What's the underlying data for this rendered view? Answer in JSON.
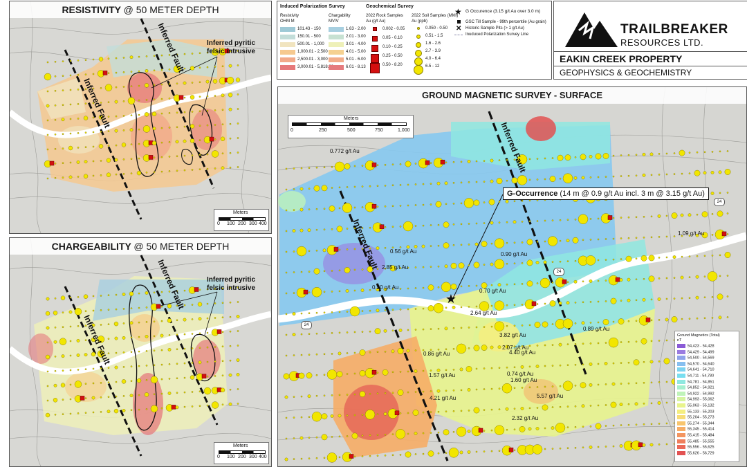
{
  "resistivity_panel": {
    "title_bold": "RESISTIVITY",
    "title_rest": "@ 50 METER DEPTH",
    "callout": "Inferred pyritic\nfelsic intrusive",
    "fault_label": "Inferred Fault",
    "scale_title": "Meters",
    "scale_ticks": [
      "0",
      "100",
      "200",
      "300",
      "400"
    ]
  },
  "chargeability_panel": {
    "title_bold": "CHARGEABILITY",
    "title_rest": "@ 50 METER DEPTH",
    "callout": "Inferred pyritic\nfelsic intrusive",
    "fault_label": "Inferred Fault",
    "scale_title": "Meters",
    "scale_ticks": [
      "0",
      "100",
      "200",
      "300",
      "400"
    ]
  },
  "magnetic_panel": {
    "title": "GROUND MAGNETIC SURVEY - SURFACE",
    "fault_label": "Inferred Fault",
    "scale_title": "Meters",
    "scale_ticks": [
      "0",
      "250",
      "500",
      "750",
      "1,000"
    ],
    "occurrence_bold": "G-Occurrence",
    "occurrence_rest": " (14 m @ 0.9 g/t Au incl. 3 m @ 3.15 g/t Au)",
    "highway_label": "24",
    "gold_labels": [
      "0.772 g/t Au",
      "1.09 g/t Au",
      "0.56 g/t Au",
      "0.90 g/t Au",
      "2.85 g/t Au",
      "0.70 g/t Au",
      "0.20 g/t Au",
      "2.64 g/t Au",
      "0.89 g/t Au",
      "2.07 g/t Au",
      "3.82 g/t Au",
      "0.86 g/t Au",
      "4.40 g/t Au",
      "1.57 g/t Au",
      "0.74 g/t Au",
      "1.60 g/t Au",
      "5.57 g/t Au",
      "4.21 g/t Au",
      "2.32 g/t Au"
    ]
  },
  "legend": {
    "ip_title": "Induced Polarization Survey",
    "res_head": "Resistivity",
    "res_unit": "OHM M",
    "res_classes": [
      "101.43 - 150",
      "150.01 - 500",
      "500.01 - 1,000",
      "1,000.01 - 2,500",
      "2,500.01 - 3,000",
      "3,000.01 - 5,818.08"
    ],
    "res_colors": [
      "#9ec9d6",
      "#c3ddd9",
      "#f1e4bf",
      "#f6c98f",
      "#f2a989",
      "#e6787a"
    ],
    "chg_head": "Chargability",
    "chg_unit": "MV/V",
    "chg_classes": [
      "1.63 - 2.00",
      "2.01 - 3.00",
      "3.01 - 4.00",
      "4.01 - 5.00",
      "5.01 - 6.00",
      "6.01 - 8.13"
    ],
    "chg_colors": [
      "#a7cfe0",
      "#c7e1d2",
      "#eef0b8",
      "#f5d191",
      "#f2ad8a",
      "#e57b7e"
    ],
    "geo_title": "Geochemical Survey",
    "rock_head": "2022 Rock Samples",
    "rock_unit": "Au (g/t Au)",
    "rock_classes": [
      "0.002 - 0.05",
      "0.05 - 0.10",
      "0.10 - 0.25",
      "0.25 - 0.50",
      "0.50 - 8.20"
    ],
    "soil_head": "2022 Soil Samples (MMI)",
    "soil_unit": "Au (ppb)",
    "soil_classes": [
      "0.050 - 0.50",
      "0.51 - 1.5",
      "1.6 - 2.6",
      "2.7 - 3.9",
      "4.0 - 6.4",
      "6.5 - 12"
    ],
    "g_occ": "G Occurence (3.15 g/t Au over 3.0 m)",
    "gsc": "GSC Till Sample - 99th percentile (Au grain)",
    "pits": "Historic Sample Pits (> 1 g/t Au)",
    "ip_line": "Inuduced Polarization Survey Line"
  },
  "brand": {
    "company_line1": "TRAILBREAKER",
    "company_line2": "RESOURCES LTD.",
    "property": "EAKIN CREEK PROPERTY",
    "subtitle": "GEOPHYSICS & GEOCHEMISTRY"
  },
  "mag_legend": {
    "title": "Ground Magnetics (Total)",
    "unit": "nT",
    "classes": [
      "54,423 - 54,428",
      "54,429 - 54,499",
      "54,500 - 54,569",
      "54,570 - 54,640",
      "54,641 - 54,710",
      "54,711 - 54,780",
      "54,781 - 54,851",
      "54,852 - 54,921",
      "54,922 - 54,992",
      "54,993 - 55,062",
      "55,063 - 55,132",
      "55,133 - 55,203",
      "55,204 - 55,273",
      "55,274 - 55,344",
      "55,345 - 55,414",
      "55,415 - 55,484",
      "55,485 - 55,555",
      "55,556 - 55,625",
      "55,626 - 56,729"
    ],
    "colors": [
      "#8a5bd6",
      "#9a7be0",
      "#8fa3ea",
      "#86bff0",
      "#7dd3f0",
      "#78def0",
      "#8fe8e0",
      "#a6efcf",
      "#bff3b9",
      "#d6f4a1",
      "#e8f48d",
      "#f4ee7f",
      "#f7dc76",
      "#f8c56d",
      "#f6ad66",
      "#f39560",
      "#ef7e5b",
      "#ea6857",
      "#e25252"
    ]
  }
}
